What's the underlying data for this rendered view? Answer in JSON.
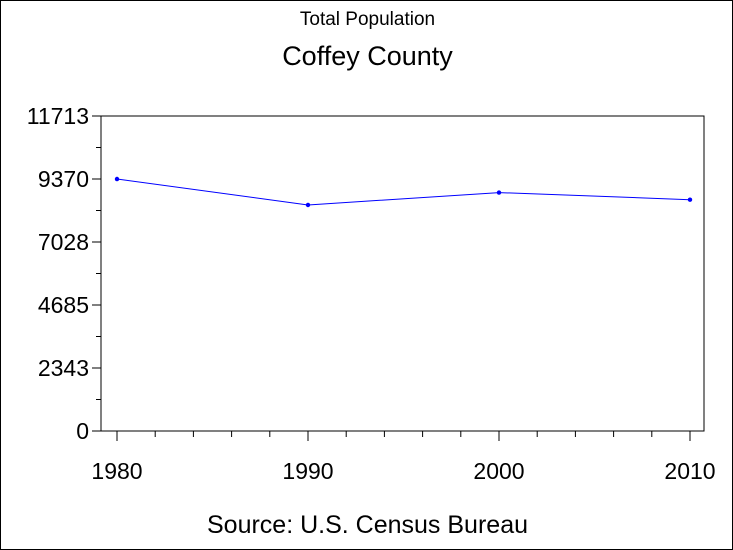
{
  "chart_data": {
    "type": "line",
    "title": "Total Population",
    "subtitle": "Coffey County",
    "footnote": "Source: U.S. Census Bureau",
    "xlabel": "",
    "ylabel": "",
    "x": [
      1980,
      1990,
      2000,
      2010
    ],
    "x_tick_labels": [
      "1980",
      "1990",
      "2000",
      "2010"
    ],
    "y_ticks": [
      0,
      2343,
      4685,
      7028,
      9370,
      11713
    ],
    "y_tick_labels": [
      "0",
      "2343",
      "4685",
      "7028",
      "9370",
      "11713"
    ],
    "ylim": [
      0,
      11713
    ],
    "series": [
      {
        "values": [
          9370,
          8404,
          8865,
          8601
        ]
      }
    ],
    "grid": false,
    "colors": {
      "line": "#0000ff",
      "marker": "#0000ff",
      "axis": "#000000"
    }
  }
}
